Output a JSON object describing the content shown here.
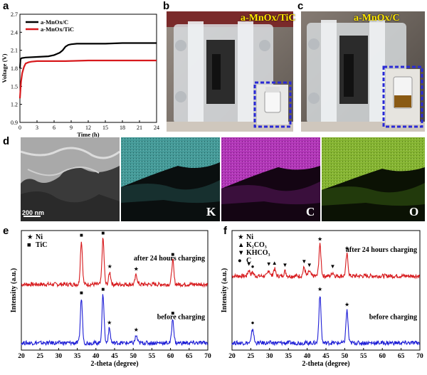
{
  "panels": {
    "a": "a",
    "b": "b",
    "c": "c",
    "d": "d",
    "e": "e",
    "f": "f"
  },
  "colors": {
    "black_series": "#000000",
    "red_series": "#d7191c",
    "blue_series": "#1f1fd6"
  },
  "panel_b": {
    "title": "a-MnOx/TiC"
  },
  "panel_c": {
    "title": "a-MnOx/C"
  },
  "panel_d": {
    "scale_bar": "200 nm",
    "maps": [
      "K",
      "C",
      "O"
    ],
    "map_colors": [
      "#4fb3b0",
      "#c23cc9",
      "#9bd13a"
    ]
  },
  "chart_data": [
    {
      "id": "a",
      "type": "line",
      "xlabel": "Time (h)",
      "ylabel": "Voltage (V)",
      "xlim": [
        0,
        24
      ],
      "ylim": [
        0.9,
        2.7
      ],
      "xticks": [
        0,
        3,
        6,
        9,
        12,
        15,
        18,
        21,
        24
      ],
      "yticks": [
        0.9,
        1.2,
        1.5,
        1.8,
        2.1,
        2.4,
        2.7
      ],
      "legend": [
        "a-MnOx/C",
        "a-MnOx/TiC"
      ],
      "series": [
        {
          "name": "a-MnOx/C",
          "color": "#000000",
          "x": [
            0,
            0.1,
            0.3,
            1,
            3,
            5,
            6,
            6.5,
            7,
            7.5,
            8,
            8.5,
            9,
            10,
            12,
            15,
            18,
            21,
            24
          ],
          "y": [
            1.8,
            1.95,
            1.97,
            1.98,
            1.99,
            2.0,
            2.02,
            2.04,
            2.06,
            2.1,
            2.16,
            2.19,
            2.2,
            2.21,
            2.21,
            2.21,
            2.22,
            2.22,
            2.22
          ]
        },
        {
          "name": "a-MnOx/TiC",
          "color": "#d7191c",
          "x": [
            0,
            0.1,
            0.2,
            0.4,
            0.7,
            1,
            1.5,
            2,
            3,
            5,
            8,
            12,
            16,
            20,
            24
          ],
          "y": [
            1.3,
            1.45,
            1.58,
            1.72,
            1.82,
            1.88,
            1.9,
            1.91,
            1.92,
            1.92,
            1.92,
            1.93,
            1.93,
            1.93,
            1.93
          ]
        }
      ]
    },
    {
      "id": "e",
      "type": "line",
      "xlabel": "2-theta (degree)",
      "ylabel": "Intensity (a.u.)",
      "xlim": [
        20,
        70
      ],
      "xticks": [
        20,
        25,
        30,
        35,
        40,
        45,
        50,
        55,
        60,
        65,
        70
      ],
      "legend": [
        {
          "marker": "★",
          "label": "Ni"
        },
        {
          "marker": "■",
          "label": "TiC"
        }
      ],
      "series": [
        {
          "name": "after 24 hours charging",
          "color": "#d7191c",
          "offset": 0.55,
          "peaks": [
            {
              "x": 36.1,
              "h": 0.36,
              "m": "■"
            },
            {
              "x": 41.9,
              "h": 0.38,
              "m": "■"
            },
            {
              "x": 43.7,
              "h": 0.1,
              "m": "★"
            },
            {
              "x": 50.8,
              "h": 0.08,
              "m": "★"
            },
            {
              "x": 60.6,
              "h": 0.2,
              "m": "■"
            }
          ]
        },
        {
          "name": "before charging",
          "color": "#1f1fd6",
          "offset": 0.06,
          "peaks": [
            {
              "x": 36.1,
              "h": 0.37,
              "m": "■"
            },
            {
              "x": 41.9,
              "h": 0.4,
              "m": "■"
            },
            {
              "x": 43.6,
              "h": 0.12,
              "m": "★"
            },
            {
              "x": 50.8,
              "h": 0.06,
              "m": "★"
            },
            {
              "x": 60.6,
              "h": 0.2,
              "m": "■"
            }
          ]
        }
      ]
    },
    {
      "id": "f",
      "type": "line",
      "xlabel": "2-theta (degree)",
      "ylabel": "Intensity (a.u.)",
      "xlim": [
        20,
        70
      ],
      "xticks": [
        20,
        25,
        30,
        35,
        40,
        45,
        50,
        55,
        60,
        65,
        70
      ],
      "legend": [
        {
          "marker": "★",
          "label": "Ni"
        },
        {
          "marker": "▲",
          "label": "K₂CO₃"
        },
        {
          "marker": "▼",
          "label": "KHCO₃"
        },
        {
          "marker": "●",
          "label": "C"
        }
      ],
      "series": [
        {
          "name": "after 24 hours charging",
          "color": "#d7191c",
          "offset": 0.62,
          "peaks": [
            {
              "x": 24.5,
              "h": 0.05,
              "m": "▼"
            },
            {
              "x": 25.5,
              "h": 0.03,
              "m": "●"
            },
            {
              "x": 29.8,
              "h": 0.05,
              "m": "▼"
            },
            {
              "x": 31.3,
              "h": 0.06,
              "m": "▲"
            },
            {
              "x": 34.1,
              "h": 0.04,
              "m": "▼"
            },
            {
              "x": 39.2,
              "h": 0.07,
              "m": "▼"
            },
            {
              "x": 40.6,
              "h": 0.04,
              "m": "▼"
            },
            {
              "x": 43.4,
              "h": 0.26,
              "m": "★"
            },
            {
              "x": 46.8,
              "h": 0.03,
              "m": "▼"
            },
            {
              "x": 50.6,
              "h": 0.18,
              "m": "★"
            }
          ]
        },
        {
          "name": "before charging",
          "color": "#1f1fd6",
          "offset": 0.06,
          "peaks": [
            {
              "x": 25.5,
              "h": 0.12,
              "m": "●"
            },
            {
              "x": 43.4,
              "h": 0.4,
              "m": "★"
            },
            {
              "x": 50.6,
              "h": 0.27,
              "m": "★"
            }
          ]
        }
      ]
    }
  ]
}
